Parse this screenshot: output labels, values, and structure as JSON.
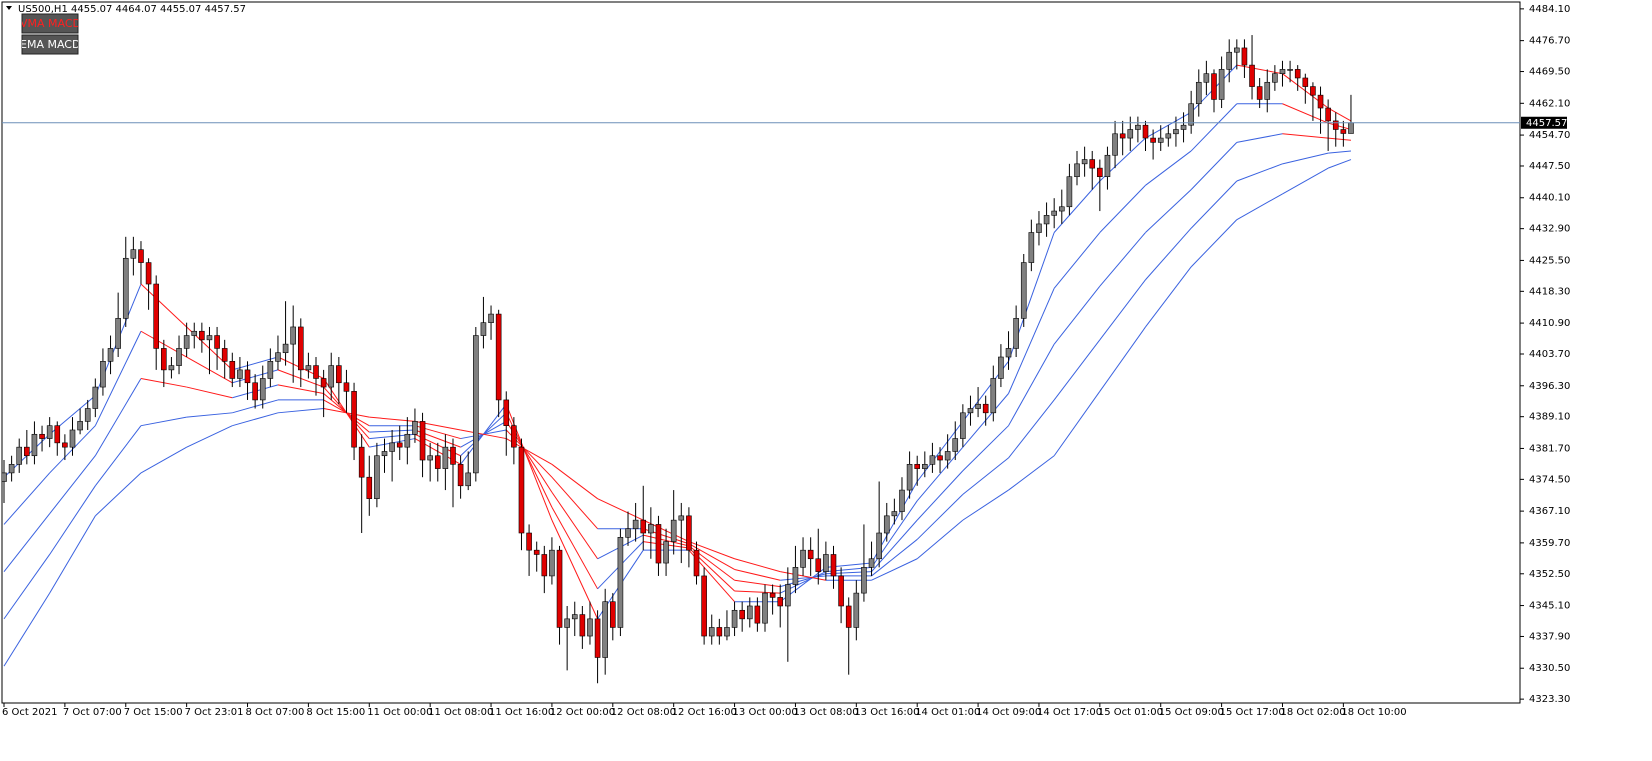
{
  "chart_data": {
    "type": "candlestick",
    "title": "US500,H1  4455.07 4464.07 4455.07 4457.57",
    "buttons": [
      "VMA MACD",
      "EMA MACD"
    ],
    "categories": [
      "6 Oct 2021",
      null,
      null,
      null,
      null,
      null,
      null,
      null,
      "7 Oct 07:00",
      null,
      null,
      null,
      null,
      null,
      null,
      null,
      "7 Oct 15:00",
      null,
      null,
      null,
      null,
      null,
      null,
      null,
      "7 Oct 23:01",
      null,
      null,
      null,
      null,
      null,
      null,
      null,
      "8 Oct 07:00",
      null,
      null,
      null,
      null,
      null,
      null,
      null,
      "8 Oct 15:00",
      null,
      null,
      null,
      null,
      null,
      null,
      null,
      "11 Oct 00:00",
      null,
      null,
      null,
      null,
      null,
      null,
      null,
      "11 Oct 08:00",
      null,
      null,
      null,
      null,
      null,
      null,
      null,
      "11 Oct 16:00",
      null,
      null,
      null,
      null,
      null,
      null,
      null,
      "12 Oct 00:00",
      null,
      null,
      null,
      null,
      null,
      null,
      null,
      "12 Oct 08:00",
      null,
      null,
      null,
      null,
      null,
      null,
      null,
      "12 Oct 16:00",
      null,
      null,
      null,
      null,
      null,
      null,
      null,
      "13 Oct 00:00",
      null,
      null,
      null,
      null,
      null,
      null,
      null,
      "13 Oct 08:00",
      null,
      null,
      null,
      null,
      null,
      null,
      null,
      "13 Oct 16:00",
      null,
      null,
      null,
      null,
      null,
      null,
      null,
      "14 Oct 01:00",
      null,
      null,
      null,
      null,
      null,
      null,
      null,
      "14 Oct 09:00",
      null,
      null,
      null,
      null,
      null,
      null,
      null,
      "14 Oct 17:00",
      null,
      null,
      null,
      null,
      null,
      null,
      null,
      "15 Oct 01:00",
      null,
      null,
      null,
      null,
      null,
      null,
      null,
      "15 Oct 09:00",
      null,
      null,
      null,
      null,
      null,
      null,
      null,
      "15 Oct 17:00",
      null,
      null,
      null,
      null,
      null,
      null,
      null,
      "18 Oct 02:00",
      null,
      null,
      null,
      null,
      null,
      null,
      null,
      "18 Oct 10:00",
      null
    ],
    "open": [
      4374,
      4376,
      4378,
      4382,
      4380,
      4385,
      4384,
      4387,
      4383,
      4382,
      4386,
      4388,
      4391,
      4396,
      4402,
      4405,
      4412,
      4426,
      4428,
      4425,
      4420,
      4405,
      4400,
      4401,
      4405,
      4408,
      4409,
      4407,
      4408,
      4405,
      4402,
      4398,
      4400,
      4397,
      4393,
      4398,
      4402,
      4404,
      4406,
      4410,
      4400,
      4401,
      4398,
      4396,
      4401,
      4397,
      4395,
      4382,
      4375,
      4370,
      4380,
      4381,
      4383,
      4382,
      4385,
      4388,
      4379,
      4380,
      4377,
      4382,
      4378,
      4373,
      4376,
      4408,
      4411,
      4413,
      4393,
      4387,
      4382,
      4362,
      4358,
      4357,
      4352,
      4358,
      4340,
      4342,
      4343,
      4338,
      4342,
      4333,
      4346,
      4340,
      4361,
      4363,
      4365,
      4362,
      4364,
      4355,
      4360,
      4365,
      4366,
      4358,
      4352,
      4338,
      4340,
      4338,
      4340,
      4344,
      4342,
      4345,
      4341,
      4348,
      4347,
      4345,
      4350,
      4354,
      4358,
      4356,
      4353,
      4357,
      4352,
      4345,
      4340,
      4348,
      4354,
      4356,
      4362,
      4366,
      4367,
      4372,
      4378,
      4377,
      4378,
      4380,
      4379,
      4381,
      4384,
      4390,
      4391,
      4392,
      4390,
      4398,
      4403,
      4405,
      4412,
      4425,
      4432,
      4434,
      4436,
      4437,
      4438,
      4445,
      4448,
      4449,
      4447,
      4445,
      4450,
      4455,
      4454,
      4456,
      4457,
      4454,
      4453,
      4454,
      4455,
      4456,
      4457,
      4462,
      4467,
      4469,
      4463,
      4470,
      4474,
      4475,
      4471,
      4466,
      4463,
      4467,
      4469,
      4470,
      4470,
      4468,
      4466,
      4464,
      4461,
      4458,
      4456,
      4455.07
    ],
    "high": [
      4379,
      4380,
      4384,
      4386,
      4388,
      4387,
      4389,
      4388,
      4385,
      4389,
      4391,
      4393,
      4398,
      4405,
      4408,
      4418,
      4431,
      4431,
      4430,
      4426,
      4422,
      4407,
      4403,
      4408,
      4411,
      4411,
      4411,
      4410,
      4410,
      4407,
      4404,
      4403,
      4402,
      4399,
      4401,
      4405,
      4408,
      4416,
      4415,
      4412,
      4404,
      4403,
      4400,
      4404,
      4403,
      4400,
      4397,
      4385,
      4380,
      4383,
      4384,
      4386,
      4387,
      4389,
      4391,
      4390,
      4383,
      4383,
      4385,
      4384,
      4380,
      4381,
      4410,
      4417,
      4415,
      4414,
      4395,
      4389,
      4384,
      4364,
      4360,
      4359,
      4361,
      4359,
      4345,
      4346,
      4345,
      4346,
      4344,
      4349,
      4348,
      4363,
      4367,
      4369,
      4373,
      4368,
      4366,
      4363,
      4372,
      4369,
      4368,
      4360,
      4354,
      4343,
      4342,
      4344,
      4346,
      4346,
      4347,
      4347,
      4350,
      4350,
      4350,
      4354,
      4359,
      4361,
      4361,
      4363,
      4360,
      4359,
      4354,
      4347,
      4351,
      4364,
      4360,
      4374,
      4369,
      4370,
      4375,
      4381,
      4380,
      4381,
      4383,
      4382,
      4385,
      4388,
      4392,
      4394,
      4396,
      4394,
      4401,
      4406,
      4409,
      4415,
      4427,
      4435,
      4437,
      4439,
      4440,
      4442,
      4448,
      4451,
      4452,
      4451,
      4449,
      4452,
      4458,
      4458,
      4459,
      4459,
      4458,
      4456,
      4457,
      4457,
      4459,
      4460,
      4465,
      4470,
      4472,
      4470,
      4473,
      4477,
      4477,
      4477,
      4478,
      4468,
      4470,
      4471,
      4472,
      4472,
      4471,
      4469,
      4467,
      4466,
      4463,
      4460,
      4458,
      4464.07
    ],
    "low": [
      4369,
      4374,
      4376,
      4378,
      4378,
      4381,
      4382,
      4380,
      4379,
      4380,
      4385,
      4386,
      4389,
      4394,
      4399,
      4403,
      4410,
      4422,
      4420,
      4414,
      4400,
      4396,
      4398,
      4399,
      4403,
      4405,
      4404,
      4399,
      4400,
      4398,
      4396,
      4396,
      4393,
      4391,
      4391,
      4396,
      4400,
      4401,
      4397,
      4396,
      4398,
      4394,
      4389,
      4393,
      4392,
      4390,
      4379,
      4362,
      4366,
      4368,
      4376,
      4374,
      4379,
      4378,
      4383,
      4375,
      4374,
      4374,
      4372,
      4368,
      4370,
      4372,
      4374,
      4405,
      4407,
      4389,
      4380,
      4378,
      4358,
      4352,
      4353,
      4348,
      4350,
      4336,
      4330,
      4338,
      4335,
      4336,
      4327,
      4329,
      4337,
      4338,
      4359,
      4360,
      4358,
      4356,
      4352,
      4352,
      4357,
      4355,
      4354,
      4350,
      4336,
      4336,
      4336,
      4337,
      4338,
      4339,
      4340,
      4339,
      4339,
      4343,
      4340,
      4332,
      4348,
      4352,
      4352,
      4350,
      4351,
      4349,
      4341,
      4329,
      4337,
      4346,
      4352,
      4354,
      4360,
      4364,
      4365,
      4370,
      4373,
      4375,
      4376,
      4376,
      4377,
      4379,
      4382,
      4387,
      4389,
      4387,
      4388,
      4396,
      4400,
      4403,
      4410,
      4423,
      4429,
      4431,
      4433,
      4434,
      4436,
      4443,
      4445,
      4442,
      4437,
      4442,
      4447,
      4450,
      4451,
      4453,
      4451,
      4449,
      4451,
      4452,
      4452,
      4453,
      4455,
      4459,
      4464,
      4460,
      4461,
      4467,
      4470,
      4468,
      4463,
      4461,
      4460,
      4465,
      4466,
      4467,
      4465,
      4462,
      4458,
      4455,
      4451,
      4452,
      4452,
      4455.07
    ],
    "close": [
      4376,
      4378,
      4382,
      4380,
      4385,
      4384,
      4387,
      4383,
      4382,
      4386,
      4388,
      4391,
      4396,
      4402,
      4405,
      4412,
      4426,
      4428,
      4425,
      4420,
      4405,
      4400,
      4401,
      4405,
      4408,
      4409,
      4407,
      4408,
      4405,
      4402,
      4398,
      4400,
      4397,
      4393,
      4398,
      4402,
      4404,
      4406,
      4410,
      4400,
      4401,
      4398,
      4396,
      4401,
      4397,
      4395,
      4382,
      4375,
      4370,
      4380,
      4381,
      4383,
      4382,
      4385,
      4388,
      4379,
      4380,
      4377,
      4382,
      4378,
      4373,
      4376,
      4408,
      4411,
      4413,
      4393,
      4387,
      4382,
      4362,
      4358,
      4357,
      4352,
      4358,
      4340,
      4342,
      4343,
      4338,
      4342,
      4333,
      4346,
      4340,
      4361,
      4363,
      4365,
      4362,
      4364,
      4355,
      4360,
      4365,
      4366,
      4358,
      4352,
      4338,
      4340,
      4338,
      4340,
      4344,
      4342,
      4345,
      4341,
      4348,
      4347,
      4345,
      4350,
      4354,
      4358,
      4356,
      4353,
      4357,
      4352,
      4345,
      4340,
      4348,
      4354,
      4356,
      4362,
      4366,
      4367,
      4372,
      4378,
      4377,
      4378,
      4380,
      4379,
      4381,
      4384,
      4390,
      4391,
      4392,
      4390,
      4398,
      4403,
      4405,
      4412,
      4425,
      4432,
      4434,
      4436,
      4437,
      4438,
      4445,
      4448,
      4449,
      4447,
      4445,
      4450,
      4455,
      4454,
      4456,
      4457,
      4454,
      4453,
      4454,
      4455,
      4456,
      4457,
      4462,
      4467,
      4469,
      4463,
      4470,
      4474,
      4475,
      4471,
      4466,
      4463,
      4467,
      4469,
      4470,
      4470,
      4468,
      4466,
      4464,
      4461,
      4458,
      4456,
      4455.07,
      4457.57
    ],
    "up_color": "#808080",
    "down_color": "#e00000",
    "ribbon_x": [
      0,
      6,
      12,
      18,
      24,
      30,
      36,
      42,
      48,
      54,
      60,
      66,
      72,
      78,
      84,
      90,
      96,
      102,
      108,
      114,
      120,
      126,
      132,
      138,
      144,
      150,
      156,
      162,
      168,
      174,
      177
    ],
    "ribbon": [
      {
        "values": [
          4375,
          4385,
          4394,
          4420,
          4410,
          4400,
          4403,
          4398,
          4382,
          4384,
          4378,
          4392,
          4365,
          4342,
          4358,
          4358,
          4346,
          4346,
          4354,
          4355,
          4374,
          4388,
          4402,
          4432,
          4444,
          4454,
          4460,
          4471,
          4469,
          4461,
          4458
        ]
      },
      {
        "values": [
          4364,
          4376,
          4387,
          4409,
          4403,
          4397,
          4400,
          4396,
          4384,
          4385,
          4380,
          4390,
          4368,
          4349,
          4360,
          4358.5,
          4348.5,
          4348,
          4353,
          4354,
          4369.5,
          4382,
          4394.5,
          4419,
          4432,
          4443,
          4451,
          4462,
          4462,
          4457.5,
          4456
        ]
      },
      {
        "values": [
          4353,
          4366.5,
          4380,
          4398,
          4396,
          4393.5,
          4396.5,
          4394.5,
          4385.5,
          4386,
          4382,
          4388,
          4371.5,
          4356,
          4361.5,
          4359,
          4351,
          4349.5,
          4352.5,
          4353,
          4365,
          4376.5,
          4387,
          4406,
          4419.5,
          4432,
          4442,
          4453,
          4455,
          4454,
          4453.5
        ]
      },
      {
        "values": [
          4342,
          4357,
          4373,
          4387,
          4389,
          4390,
          4393,
          4393,
          4387,
          4387,
          4384,
          4386,
          4375,
          4363,
          4363,
          4359.5,
          4353.5,
          4351,
          4352,
          4352,
          4360.5,
          4371,
          4379.5,
          4393,
          4407,
          4421,
          4433,
          4444,
          4448,
          4450.5,
          4451
        ]
      },
      {
        "values": [
          4331,
          4348,
          4366,
          4376,
          4382,
          4387,
          4390,
          4391,
          4389,
          4388,
          4386,
          4384,
          4378,
          4370,
          4365,
          4360,
          4356,
          4353,
          4351,
          4351,
          4356,
          4365,
          4372,
          4380,
          4395,
          4410,
          4424,
          4435,
          4441,
          4447,
          4449
        ]
      }
    ],
    "ribbon_up_color": "#3a62e0",
    "ribbon_down_color": "#ff1a1a",
    "current_price": 4457.57,
    "current_price_color": "#6d8fb8",
    "ylim": [
      4322.4,
      4485.7
    ],
    "yticks": [
      {
        "value": 4484.1,
        "label": "4484.10"
      },
      {
        "value": 4476.7,
        "label": "4476.70"
      },
      {
        "value": 4469.5,
        "label": "4469.50"
      },
      {
        "value": 4462.1,
        "label": "4462.10"
      },
      {
        "value": 4454.7,
        "label": "4454.70"
      },
      {
        "value": 4447.5,
        "label": "4447.50"
      },
      {
        "value": 4440.1,
        "label": "4440.10"
      },
      {
        "value": 4432.9,
        "label": "4432.90"
      },
      {
        "value": 4425.5,
        "label": "4425.50"
      },
      {
        "value": 4418.3,
        "label": "4418.30"
      },
      {
        "value": 4410.9,
        "label": "4410.90"
      },
      {
        "value": 4403.7,
        "label": "4403.70"
      },
      {
        "value": 4396.3,
        "label": "4396.30"
      },
      {
        "value": 4389.1,
        "label": "4389.10"
      },
      {
        "value": 4381.7,
        "label": "4381.70"
      },
      {
        "value": 4374.5,
        "label": "4374.50"
      },
      {
        "value": 4367.1,
        "label": "4367.10"
      },
      {
        "value": 4359.7,
        "label": "4359.70"
      },
      {
        "value": 4352.5,
        "label": "4352.50"
      },
      {
        "value": 4345.1,
        "label": "4345.10"
      },
      {
        "value": 4337.9,
        "label": "4337.90"
      },
      {
        "value": 4330.5,
        "label": "4330.50"
      },
      {
        "value": 4323.3,
        "label": "4323.30"
      }
    ]
  }
}
